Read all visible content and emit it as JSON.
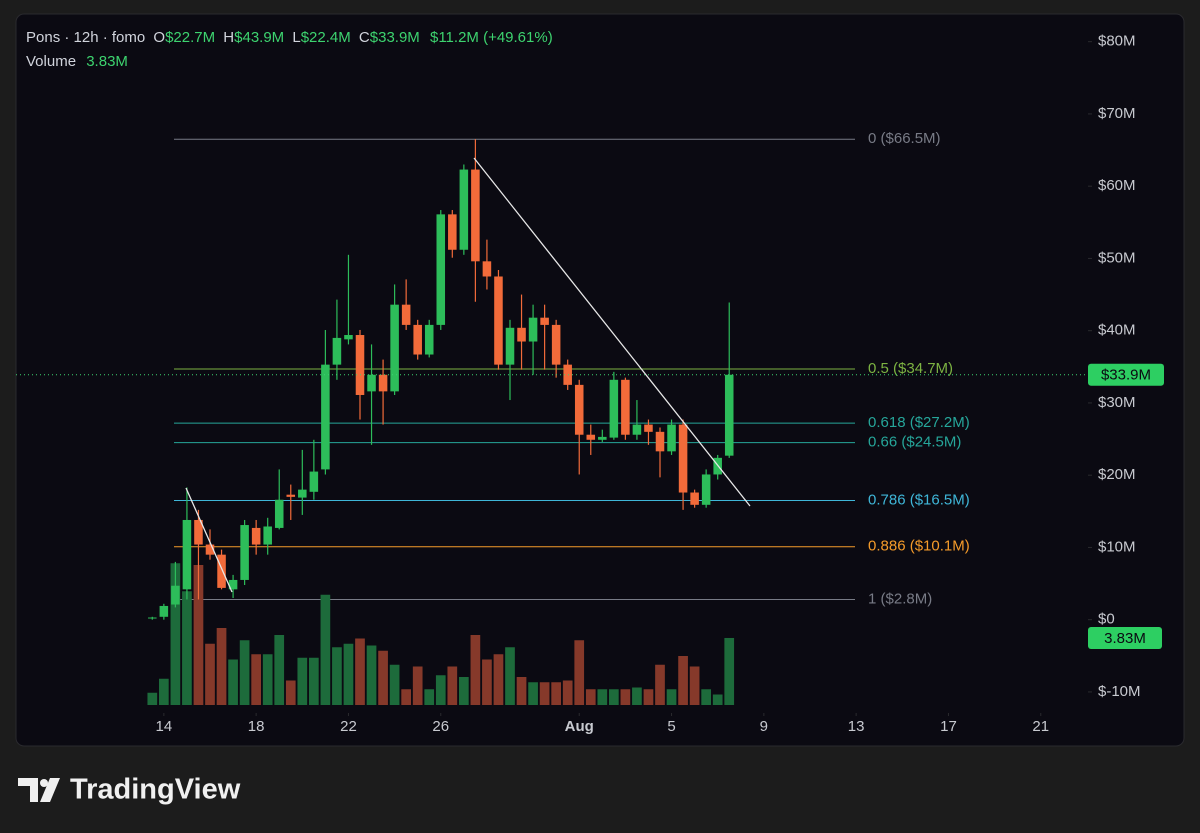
{
  "chart_data": {
    "type": "candlestick",
    "header": {
      "symbol": "Pons · 12h · fomo",
      "o_label": "O",
      "open": "$22.7M",
      "h_label": "H",
      "high": "$43.9M",
      "l_label": "L",
      "low": "$22.4M",
      "c_label": "C",
      "close": "$33.9M",
      "change": "$11.2M (+49.61%)",
      "volume_label": "Volume",
      "volume": "3.83M"
    },
    "x": [
      13.5,
      14,
      14.5,
      15,
      15.5,
      16,
      16.5,
      17,
      17.5,
      18,
      18.5,
      19,
      19.5,
      20,
      20.5,
      21,
      21.5,
      22,
      22.5,
      23,
      23.5,
      24,
      24.5,
      25,
      25.5,
      26,
      26.5,
      27,
      27.5,
      28,
      28.5,
      29,
      29.5,
      30,
      30.5,
      31,
      31.5,
      32,
      32.5,
      33,
      33.5,
      34,
      34.5,
      35,
      35.5,
      36,
      36.5,
      37,
      37.5,
      38,
      38.5
    ],
    "open": [
      0.2,
      0.4,
      2.1,
      4.2,
      13.8,
      10.4,
      9.0,
      4.2,
      5.5,
      12.7,
      10.4,
      12.7,
      17.3,
      16.9,
      17.7,
      20.8,
      35.3,
      38.8,
      39.4,
      31.6,
      33.9,
      31.6,
      43.6,
      40.8,
      36.7,
      40.8,
      56.1,
      51.2,
      62.3,
      49.6,
      47.5,
      35.3,
      40.4,
      38.5,
      41.8,
      40.8,
      35.3,
      32.5,
      25.6,
      24.9,
      25.2,
      33.2,
      25.6,
      27.0,
      26.0,
      23.3,
      27.0,
      17.6,
      15.9,
      20.1,
      22.7
    ],
    "high": [
      0.4,
      2.2,
      8.0,
      18.3,
      15.2,
      12.5,
      9.7,
      6.2,
      13.8,
      13.8,
      14.1,
      20.8,
      18.7,
      23.5,
      24.9,
      40.1,
      44.3,
      50.5,
      40.1,
      38.1,
      36.0,
      46.4,
      47.1,
      41.5,
      41.5,
      56.7,
      56.7,
      63.0,
      66.5,
      52.6,
      48.4,
      41.5,
      45.0,
      43.6,
      43.6,
      41.5,
      36.0,
      33.2,
      27.0,
      26.3,
      34.3,
      33.5,
      30.4,
      27.7,
      26.6,
      27.7,
      27.7,
      18.0,
      20.8,
      22.8,
      43.9
    ],
    "low": [
      0,
      0,
      1.7,
      2.8,
      2.8,
      8.3,
      4.2,
      3.0,
      4.8,
      9.0,
      9.0,
      12.5,
      13.8,
      14.5,
      16.6,
      20.1,
      33.2,
      38.1,
      27.7,
      24.2,
      27.0,
      31.1,
      40.1,
      36.0,
      36.3,
      40.1,
      50.1,
      50.5,
      44.0,
      45.7,
      34.6,
      30.4,
      34.6,
      33.9,
      34.6,
      33.5,
      31.8,
      20.1,
      22.8,
      24.6,
      24.9,
      24.9,
      24.9,
      24.2,
      19.7,
      22.8,
      15.2,
      15.5,
      15.5,
      19.4,
      22.4
    ],
    "close": [
      0.3,
      1.9,
      4.7,
      13.8,
      10.4,
      9.0,
      4.4,
      5.5,
      13.1,
      10.4,
      12.9,
      16.6,
      17.0,
      18.0,
      20.5,
      35.3,
      39.0,
      39.4,
      31.1,
      33.9,
      31.6,
      43.6,
      40.8,
      36.7,
      40.8,
      56.1,
      51.2,
      62.3,
      49.6,
      47.5,
      35.3,
      40.4,
      38.5,
      41.8,
      40.8,
      35.3,
      32.5,
      25.6,
      24.9,
      25.3,
      33.2,
      25.6,
      27.0,
      26.0,
      23.3,
      27.0,
      17.6,
      15.9,
      20.1,
      22.4,
      33.9
    ],
    "volume": [
      0.7,
      1.5,
      8.1,
      6.5,
      8.0,
      3.5,
      4.4,
      2.6,
      3.7,
      2.9,
      2.9,
      4.0,
      1.4,
      2.7,
      2.7,
      6.3,
      3.3,
      3.5,
      3.8,
      3.4,
      3.1,
      2.3,
      0.9,
      2.2,
      0.9,
      1.7,
      2.2,
      1.6,
      4.0,
      2.6,
      2.9,
      3.3,
      1.6,
      1.3,
      1.3,
      1.3,
      1.4,
      3.7,
      0.9,
      0.9,
      0.9,
      0.9,
      1.0,
      0.9,
      2.3,
      0.9,
      2.8,
      2.2,
      0.9,
      0.6,
      3.83
    ],
    "up_color": "#2dbd5a",
    "down_color": "#f26b3a",
    "volume_up_color": "#1d6b3b",
    "volume_down_color": "#86392a",
    "xlim": [
      8.2,
      53.7
    ],
    "xticks": [
      14,
      18,
      22,
      26,
      {
        "value": 32,
        "label": "Aug"
      },
      {
        "value": 36,
        "label": "5"
      },
      {
        "value": 40,
        "label": "9"
      },
      {
        "value": 44,
        "label": "13"
      },
      {
        "value": 48,
        "label": "17"
      },
      {
        "value": 52,
        "label": "21"
      }
    ],
    "ylim": [
      -12.5,
      83
    ],
    "yticks": [
      {
        "value": 80,
        "label": "$80M"
      },
      {
        "value": 70,
        "label": "$70M"
      },
      {
        "value": 60,
        "label": "$60M"
      },
      {
        "value": 50,
        "label": "$50M"
      },
      {
        "value": 40,
        "label": "$40M"
      },
      {
        "value": 30,
        "label": "$30M"
      },
      {
        "value": 20,
        "label": "$20M"
      },
      {
        "value": 10,
        "label": "$10M"
      },
      {
        "value": 0,
        "label": "$0"
      },
      {
        "value": -10,
        "label": "$-10M"
      }
    ],
    "volume_lim": [
      0,
      38
    ],
    "fib_levels": [
      {
        "value": 66.5,
        "label": "0 ($66.5M)",
        "color": "#787b86"
      },
      {
        "value": 34.7,
        "label": "0.5 ($34.7M)",
        "color": "#7cb342"
      },
      {
        "value": 27.2,
        "label": "0.618 ($27.2M)",
        "color": "#26a69a"
      },
      {
        "value": 24.5,
        "label": "0.66 ($24.5M)",
        "color": "#26a69a"
      },
      {
        "value": 16.5,
        "label": "0.786 ($16.5M)",
        "color": "#3fb6d8"
      },
      {
        "value": 10.1,
        "label": "0.886 ($10.1M)",
        "color": "#f59b2a"
      },
      {
        "value": 2.8,
        "label": "1 ($2.8M)",
        "color": "#787b86"
      }
    ],
    "brand": "TradingView"
  }
}
